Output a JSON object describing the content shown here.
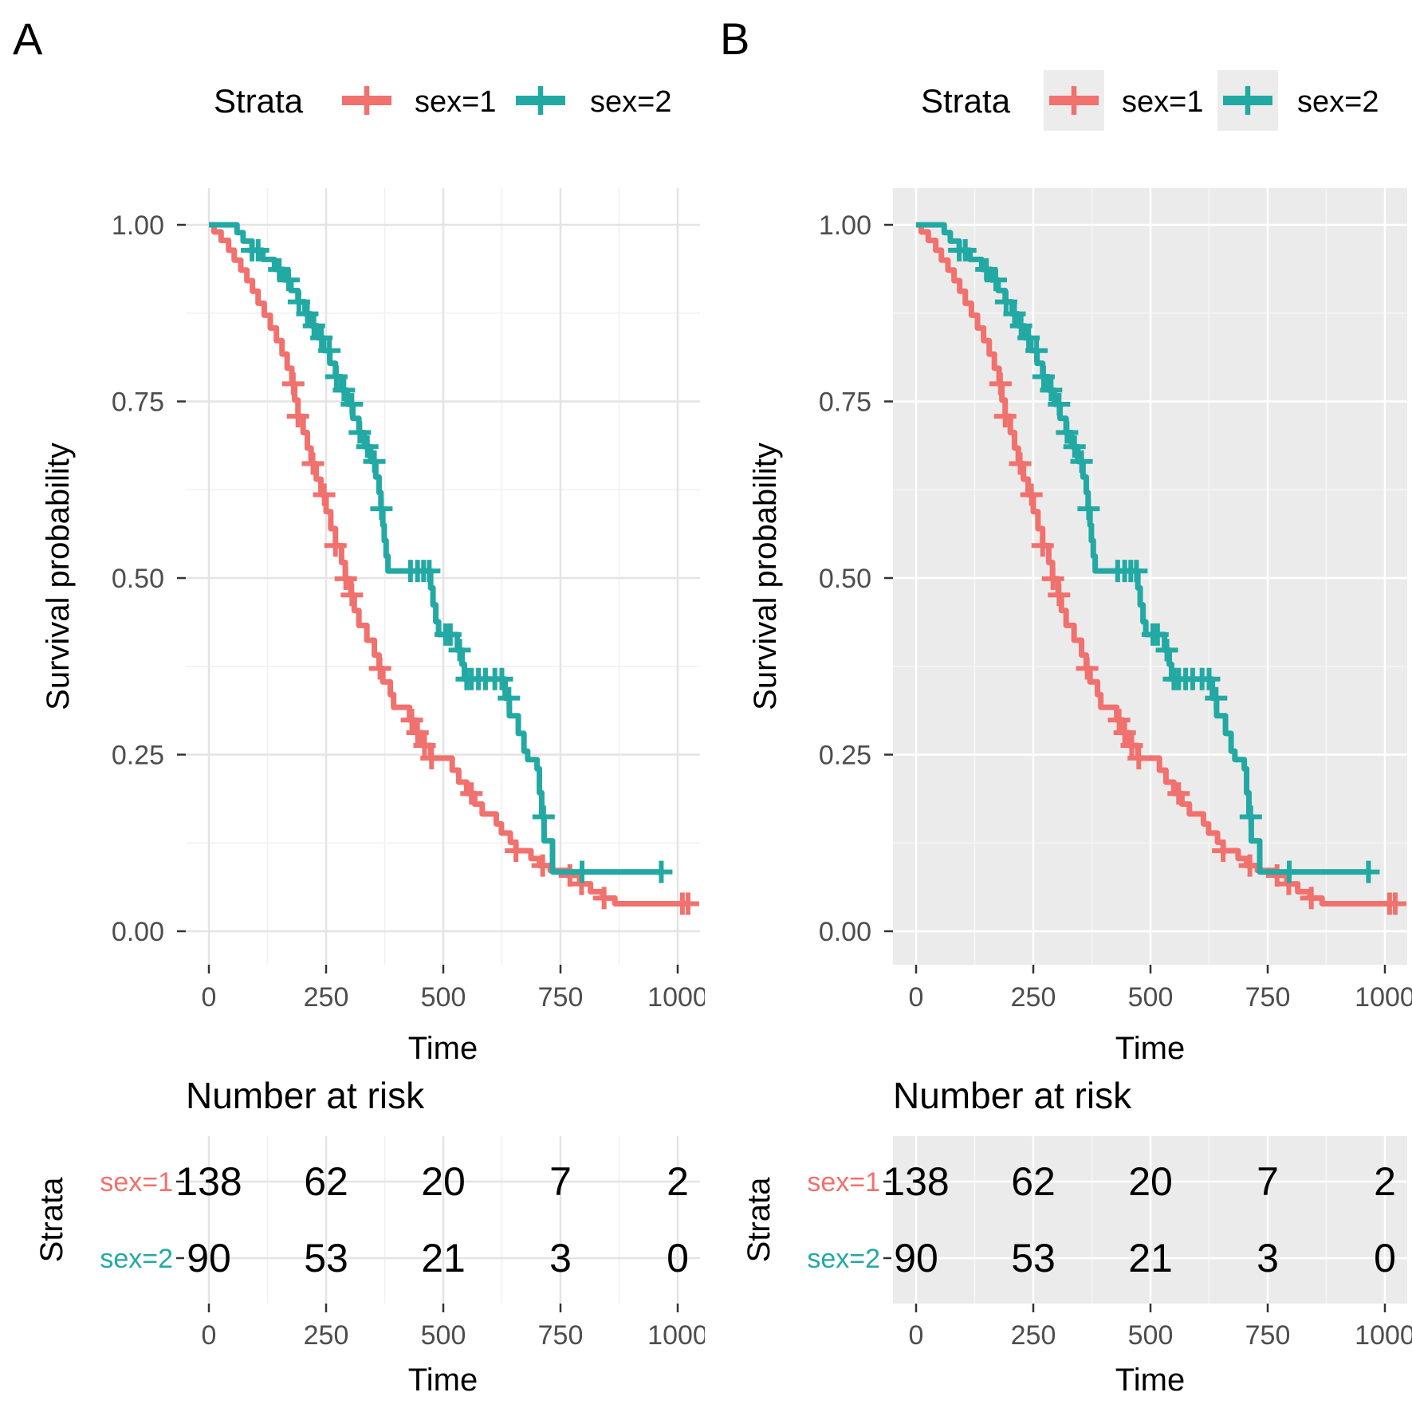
{
  "figure": {
    "background": "#ffffff",
    "text_color": "#000000",
    "tick_label_color": "#4d4d4d",
    "tick_mark_color": "#333333"
  },
  "panels": [
    {
      "letter": "A",
      "theme": {
        "panel_bg": "#ffffff",
        "grid_major": "#e4e4e4",
        "grid_minor": "#f0f0f0",
        "legend_key_bg": null
      }
    },
    {
      "letter": "B",
      "theme": {
        "panel_bg": "#ebebeb",
        "grid_major": "#ffffff",
        "grid_minor": "#f5f5f5",
        "legend_key_bg": "#ececec"
      }
    }
  ],
  "chart_data": {
    "type": "line",
    "subtype": "kaplan-meier-step",
    "title": "",
    "legend_title": "Strata",
    "xlabel": "Time",
    "ylabel": "Survival probability",
    "xlim": [
      0,
      1022
    ],
    "ylim": [
      0,
      1
    ],
    "xticks": [
      0,
      250,
      500,
      750,
      1000
    ],
    "yticks": [
      {
        "value": 1.0,
        "label": "1.00"
      },
      {
        "value": 0.75,
        "label": "0.75"
      },
      {
        "value": 0.5,
        "label": "0.50"
      },
      {
        "value": 0.25,
        "label": "0.25"
      },
      {
        "value": 0.0,
        "label": "0.00"
      }
    ],
    "x_minor": [
      125,
      375,
      625,
      875
    ],
    "y_minor": [
      0.125,
      0.375,
      0.625,
      0.875
    ],
    "grid": true,
    "legend_position": "top",
    "series": [
      {
        "name": "sex=1",
        "color": "#f0716d",
        "steps": [
          [
            0,
            1.0
          ],
          [
            11,
            0.99
          ],
          [
            26,
            0.978
          ],
          [
            42,
            0.964
          ],
          [
            54,
            0.95
          ],
          [
            68,
            0.936
          ],
          [
            81,
            0.921
          ],
          [
            93,
            0.906
          ],
          [
            105,
            0.889
          ],
          [
            118,
            0.872
          ],
          [
            131,
            0.854
          ],
          [
            144,
            0.836
          ],
          [
            156,
            0.817
          ],
          [
            167,
            0.797
          ],
          [
            177,
            0.775
          ],
          [
            183,
            0.752
          ],
          [
            190,
            0.729
          ],
          [
            201,
            0.706
          ],
          [
            210,
            0.684
          ],
          [
            218,
            0.662
          ],
          [
            229,
            0.64
          ],
          [
            239,
            0.618
          ],
          [
            250,
            0.594
          ],
          [
            260,
            0.57
          ],
          [
            270,
            0.546
          ],
          [
            283,
            0.522
          ],
          [
            291,
            0.499
          ],
          [
            303,
            0.476
          ],
          [
            310,
            0.454
          ],
          [
            320,
            0.433
          ],
          [
            337,
            0.412
          ],
          [
            353,
            0.391
          ],
          [
            363,
            0.372
          ],
          [
            371,
            0.353
          ],
          [
            387,
            0.335
          ],
          [
            394,
            0.317
          ],
          [
            428,
            0.299
          ],
          [
            442,
            0.281
          ],
          [
            455,
            0.263
          ],
          [
            473,
            0.245
          ],
          [
            519,
            0.228
          ],
          [
            533,
            0.211
          ],
          [
            550,
            0.195
          ],
          [
            567,
            0.18
          ],
          [
            583,
            0.166
          ],
          [
            613,
            0.152
          ],
          [
            624,
            0.139
          ],
          [
            643,
            0.126
          ],
          [
            655,
            0.114
          ],
          [
            687,
            0.103
          ],
          [
            705,
            0.093
          ],
          [
            728,
            0.086
          ],
          [
            765,
            0.079
          ],
          [
            791,
            0.067
          ],
          [
            814,
            0.056
          ],
          [
            840,
            0.047
          ],
          [
            866,
            0.039
          ],
          [
            1022,
            0.039
          ]
        ],
        "censor_times": [
          180,
          190,
          222,
          246,
          270,
          292,
          305,
          365,
          433,
          445,
          460,
          475,
          560,
          655,
          712,
          770,
          795,
          843,
          1010,
          1022
        ]
      },
      {
        "name": "sex=2",
        "color": "#23a9a4",
        "steps": [
          [
            0,
            1.0
          ],
          [
            60,
            0.989
          ],
          [
            73,
            0.977
          ],
          [
            92,
            0.964
          ],
          [
            115,
            0.951
          ],
          [
            140,
            0.937
          ],
          [
            160,
            0.922
          ],
          [
            175,
            0.907
          ],
          [
            190,
            0.891
          ],
          [
            205,
            0.874
          ],
          [
            218,
            0.857
          ],
          [
            232,
            0.84
          ],
          [
            245,
            0.822
          ],
          [
            258,
            0.804
          ],
          [
            270,
            0.785
          ],
          [
            283,
            0.766
          ],
          [
            295,
            0.746
          ],
          [
            307,
            0.726
          ],
          [
            320,
            0.706
          ],
          [
            332,
            0.686
          ],
          [
            345,
            0.665
          ],
          [
            356,
            0.643
          ],
          [
            363,
            0.621
          ],
          [
            367,
            0.598
          ],
          [
            371,
            0.575
          ],
          [
            374,
            0.553
          ],
          [
            378,
            0.531
          ],
          [
            382,
            0.51
          ],
          [
            473,
            0.486
          ],
          [
            478,
            0.462
          ],
          [
            484,
            0.438
          ],
          [
            490,
            0.42
          ],
          [
            530,
            0.398
          ],
          [
            540,
            0.378
          ],
          [
            545,
            0.357
          ],
          [
            632,
            0.33
          ],
          [
            641,
            0.305
          ],
          [
            660,
            0.28
          ],
          [
            672,
            0.255
          ],
          [
            680,
            0.243
          ],
          [
            700,
            0.23
          ],
          [
            705,
            0.196
          ],
          [
            710,
            0.162
          ],
          [
            715,
            0.128
          ],
          [
            733,
            0.084
          ],
          [
            965,
            0.084
          ]
        ],
        "censor_times": [
          92,
          105,
          150,
          170,
          192,
          210,
          224,
          240,
          257,
          272,
          288,
          305,
          322,
          338,
          353,
          368,
          430,
          445,
          458,
          470,
          505,
          515,
          535,
          550,
          560,
          575,
          590,
          610,
          625,
          640,
          714,
          796,
          965
        ]
      }
    ],
    "risk_table": {
      "title": "Number at risk",
      "ylabel": "Strata",
      "xlabel": "Time",
      "times": [
        0,
        250,
        500,
        750,
        1000
      ],
      "rows": [
        {
          "name": "sex=1",
          "color": "#f0716d",
          "values": [
            "138",
            "62",
            "20",
            "7",
            "2"
          ]
        },
        {
          "name": "sex=2",
          "color": "#23a9a4",
          "values": [
            "90",
            "53",
            "21",
            "3",
            "0"
          ]
        }
      ]
    }
  }
}
